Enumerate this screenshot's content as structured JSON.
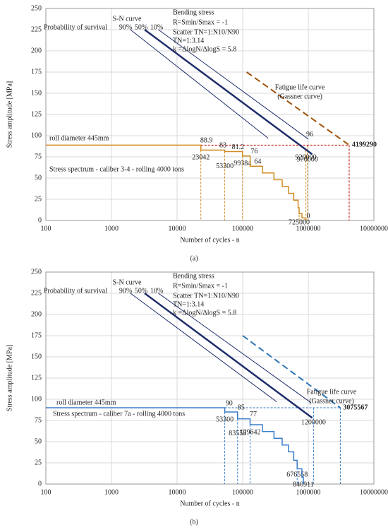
{
  "chart_data": [
    {
      "type": "line",
      "caption": "(a)",
      "xlabel": "Number of cycles  - n",
      "ylabel": "Stress amplitude  [MPa]",
      "log_x": true,
      "grid": true,
      "xlim": [
        100,
        10000000
      ],
      "xticks": [
        100,
        1000,
        10000,
        100000,
        1000000,
        10000000
      ],
      "ylim": [
        0,
        250
      ],
      "yticks": [
        0,
        25,
        50,
        75,
        100,
        125,
        150,
        175,
        200,
        225,
        250
      ],
      "annotations": [
        "S-N curve",
        "Probability  of  survival",
        "Bending stress",
        "R=Smin/Smax = -1",
        "Scatter TN=1:N10/N90",
        "TN=1:3.14",
        "k =ΔlogN/ΔlogS = 5.8",
        "roll diameter 445mm",
        "(Gassner curve)"
      ],
      "series": [
        {
          "name": "90%",
          "color": "#1f2d6b",
          "linewidth": 1,
          "x": [
            1950,
            245000
          ],
          "values": [
            225,
            97
          ]
        },
        {
          "name": "50%",
          "color": "#1f2d6b",
          "linewidth": 2.5,
          "x": [
            3200,
            1150000
          ],
          "values": [
            225,
            78
          ]
        },
        {
          "name": "10%",
          "color": "#1f2d6b",
          "linewidth": 1,
          "x": [
            5200,
            1000000
          ],
          "values": [
            225,
            96
          ]
        },
        {
          "name": "Fatigue life curve",
          "color": "#a0520a",
          "linewidth": 2,
          "dashed": true,
          "x": [
            115000,
            4199290
          ],
          "values": [
            175,
            88.9
          ]
        },
        {
          "name": "Stress spectrum - caliber 3-4 - rolling 4000 tons",
          "color": "#d08a1e",
          "linewidth": 1.5,
          "x": [
            100,
            23042,
            23042,
            53300,
            53300,
            99384,
            99384,
            130000,
            130000,
            200000,
            200000,
            300000,
            300000,
            400000,
            400000,
            500000,
            500000,
            600000,
            600000,
            700000,
            700000,
            725000,
            725000,
            800000,
            800000,
            920000,
            920000
          ],
          "values": [
            88.9,
            88.9,
            83,
            83,
            81.2,
            81.2,
            76,
            76,
            64,
            64,
            56,
            56,
            48,
            48,
            40,
            40,
            32,
            32,
            24,
            24,
            15,
            15,
            8,
            8,
            3,
            3,
            0
          ]
        }
      ],
      "cycle_marks": [
        {
          "n": 23042,
          "s": 83
        },
        {
          "n": 53300,
          "s": 81.2
        },
        {
          "n": 99384,
          "s": 76
        },
        {
          "n": 725000,
          "s": 15
        },
        {
          "n": 920000,
          "s": 83
        },
        {
          "n": 970000,
          "s": 88.9
        },
        {
          "n": 4199290,
          "s": 88.9,
          "color": "#c00000"
        }
      ],
      "level_marks": [
        {
          "s": 88.9,
          "n": 28000
        },
        {
          "s": 83,
          "n": 50000
        },
        {
          "s": 81.2,
          "n": 85000
        },
        {
          "s": 76,
          "n": 150000
        },
        {
          "s": 64,
          "n": 170000
        },
        {
          "s": 96,
          "n": 1050000
        },
        {
          "s": 0,
          "n": 1000000
        }
      ]
    },
    {
      "type": "line",
      "caption": "(b)",
      "xlabel": "Number of cycles  - n",
      "ylabel": "Stress amplitude  [MPa]",
      "log_x": true,
      "grid": true,
      "xlim": [
        100,
        10000000
      ],
      "xticks": [
        100,
        1000,
        10000,
        100000,
        1000000,
        10000000
      ],
      "ylim": [
        0,
        250
      ],
      "yticks": [
        0,
        25,
        50,
        75,
        100,
        125,
        150,
        175,
        200,
        225,
        250
      ],
      "annotations": [
        "S-N curve",
        "Probability  of  survival",
        "Bending stress",
        "R=Smin/Smax = -1",
        "Scatter TN=1:N10/N90",
        "TN=1:3.14",
        "k =ΔlogN/ΔlogS = 5.8",
        "roll diameter 445mm",
        "(Gassner curve)"
      ],
      "series": [
        {
          "name": "90%",
          "color": "#1f2d6b",
          "linewidth": 1,
          "x": [
            1950,
            330000
          ],
          "values": [
            225,
            97
          ]
        },
        {
          "name": "50%",
          "color": "#1f2d6b",
          "linewidth": 2.5,
          "x": [
            3200,
            1150000
          ],
          "values": [
            225,
            78
          ]
        },
        {
          "name": "10%",
          "color": "#1f2d6b",
          "linewidth": 1,
          "x": [
            5200,
            1100000
          ],
          "values": [
            225,
            96
          ]
        },
        {
          "name": "Fatigue life curve",
          "color": "#2e75b6",
          "linewidth": 2,
          "dashed": true,
          "x": [
            100000,
            3075567
          ],
          "values": [
            175,
            90
          ]
        },
        {
          "name": "Stress spectrum - caliber 7a - rolling 4000 tons",
          "color": "#3a7dc9",
          "linewidth": 1.5,
          "x": [
            100,
            53300,
            53300,
            83559,
            83559,
            129642,
            129642,
            200000,
            200000,
            300000,
            300000,
            400000,
            400000,
            500000,
            500000,
            600000,
            600000,
            676558,
            676558,
            800000,
            800000,
            840911,
            840911
          ],
          "values": [
            90,
            90,
            85,
            85,
            77,
            77,
            70,
            70,
            62,
            62,
            54,
            54,
            46,
            46,
            38,
            38,
            28,
            28,
            18,
            18,
            8,
            8,
            0
          ]
        }
      ],
      "cycle_marks": [
        {
          "n": 53300,
          "s": 85
        },
        {
          "n": 83559,
          "s": 77
        },
        {
          "n": 129642,
          "s": 70
        },
        {
          "n": 676558,
          "s": 28
        },
        {
          "n": 840911,
          "s": 8
        },
        {
          "n": 1200000,
          "s": 90
        },
        {
          "n": 3075567,
          "s": 90,
          "color": "#2e75b6"
        }
      ],
      "level_marks": [
        {
          "s": 90,
          "n": 62000
        },
        {
          "s": 85,
          "n": 95000
        },
        {
          "s": 77,
          "n": 145000
        }
      ]
    }
  ]
}
